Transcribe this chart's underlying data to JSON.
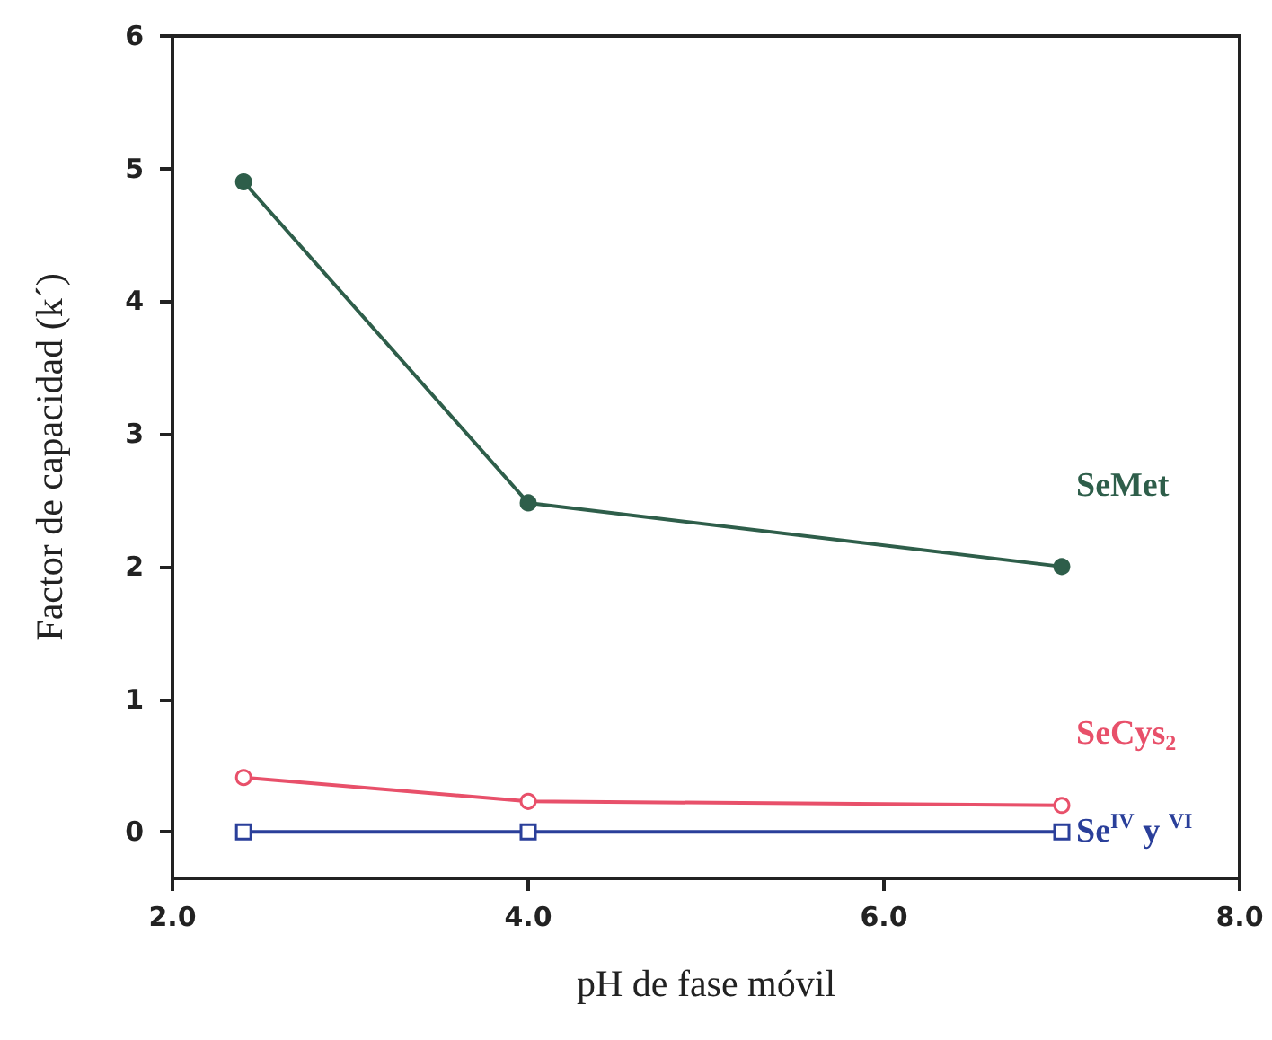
{
  "chart_data": {
    "type": "line",
    "xlabel": "pH de fase móvil",
    "ylabel": "Factor de capacidad (k´)",
    "xlim": [
      2,
      8
    ],
    "xticks": [
      {
        "value": 2,
        "label": "2.0"
      },
      {
        "value": 4,
        "label": "4.0"
      },
      {
        "value": 6,
        "label": "6.0"
      },
      {
        "value": 8,
        "label": "8.0"
      }
    ],
    "ylim": [
      -0.35,
      6
    ],
    "yticks": [
      0,
      1,
      2,
      3,
      4,
      5,
      6
    ],
    "grid": false,
    "legend": false,
    "line_style": "solid",
    "series": [
      {
        "name": "SeMet",
        "color": "#2e5e4a",
        "marker": "circle",
        "x": [
          2.4,
          4,
          7
        ],
        "values": [
          4.9,
          2.48,
          2.0
        ]
      },
      {
        "name": "SeCys$_{2}$",
        "color": "#e8506a",
        "marker": "circle-open",
        "x": [
          2.4,
          4,
          7
        ],
        "values": [
          0.41,
          0.23,
          0.2
        ]
      },
      {
        "name": "Se$^{IV}$ y $^{VI}$",
        "color": "#2a3f9a",
        "marker": "square-open",
        "x": [
          2.4,
          4,
          7
        ],
        "values": [
          0,
          0,
          0
        ]
      }
    ]
  }
}
